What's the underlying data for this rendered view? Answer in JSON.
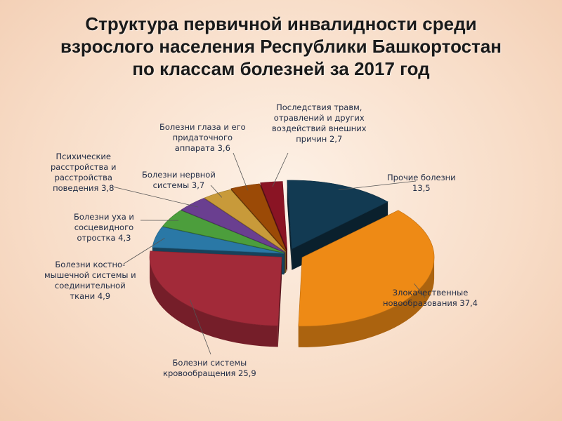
{
  "chart_data": {
    "type": "pie",
    "title_lines": [
      "Структура первичной инвалидности среди",
      "взрослого населения Республики Башкортостан",
      "по классам болезней за 2017 год"
    ],
    "slices": [
      {
        "label_lines": [
          "Прочие болезни",
          "13,5"
        ],
        "value": 13.5,
        "color": "#123a52"
      },
      {
        "label_lines": [
          "Злокачественные",
          "новообразования 37,4"
        ],
        "value": 37.4,
        "color": "#ee8a15"
      },
      {
        "label_lines": [
          "Болезни системы",
          "кровообращения 25,9"
        ],
        "value": 25.9,
        "color": "#a22a39"
      },
      {
        "label_lines": [
          "Болезни костно-",
          "мышечной системы и",
          "соединительной",
          "ткани 4,9"
        ],
        "value": 4.9,
        "color": "#2a78a6"
      },
      {
        "label_lines": [
          "Болезни уха и",
          "сосцевидного",
          "отростка 4,3"
        ],
        "value": 4.3,
        "color": "#4c9e3c"
      },
      {
        "label_lines": [
          "Психические",
          "расстройства и",
          "расстройства",
          "поведения 3,8"
        ],
        "value": 3.8,
        "color": "#6a3f90"
      },
      {
        "label_lines": [
          "Болезни нервной",
          "системы 3,7"
        ],
        "value": 3.7,
        "color": "#c89a3a"
      },
      {
        "label_lines": [
          "Болезни глаза и его",
          "придаточного",
          "аппарата 3,6"
        ],
        "value": 3.6,
        "color": "#9b4a06"
      },
      {
        "label_lines": [
          "Последствия травм,",
          "отравлений и других",
          "воздействий внешних",
          "причин 2,7"
        ],
        "value": 2.7,
        "color": "#8a1424"
      }
    ],
    "legend": "none"
  }
}
